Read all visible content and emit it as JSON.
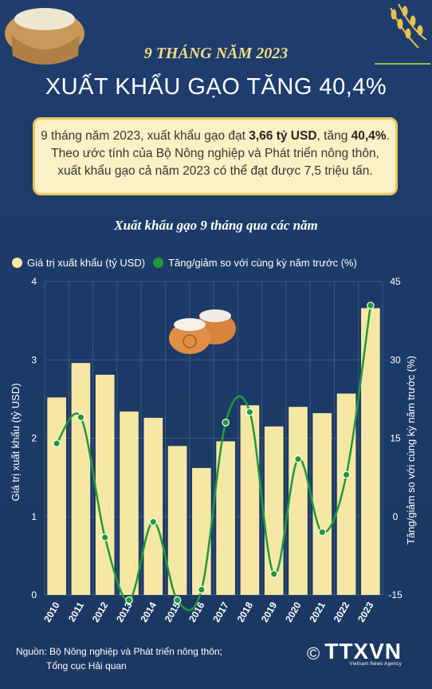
{
  "header": {
    "kicker": "9 THÁNG NĂM 2023",
    "headline": "XUẤT KHẨU GẠO TĂNG 40,4%"
  },
  "summary": {
    "line1_prefix": "9 tháng năm 2023, xuất khẩu gạo đạt ",
    "line1_value": "3,66 tỷ USD",
    "line1_mid": ", tăng ",
    "line1_pct": "40,4%",
    "line1_suffix": ".",
    "line2": "Theo ước tính của Bộ Nông nghiệp và Phát triển nông thôn,",
    "line3": "xuất khẩu gạo cả năm 2023 có thể đạt được 7,5 triệu tấn."
  },
  "chart_data": {
    "type": "bar",
    "title": "Xuất khẩu gạo 9 tháng qua các năm",
    "categories": [
      "2010",
      "2011",
      "2012",
      "2013",
      "2014",
      "2015",
      "2016",
      "2017",
      "2018",
      "2019",
      "2020",
      "2021",
      "2022",
      "2023"
    ],
    "series": [
      {
        "name": "Giá trị xuất khẩu (tỷ USD)",
        "type": "bar",
        "color": "#f6e8a4",
        "axis": "left",
        "values": [
          2.52,
          2.96,
          2.81,
          2.34,
          2.26,
          1.9,
          1.62,
          1.96,
          2.42,
          2.15,
          2.4,
          2.32,
          2.57,
          3.66
        ]
      },
      {
        "name": "Tăng/giảm so với cùng kỳ năm trước (%)",
        "type": "line",
        "color": "#1f9a3a",
        "axis": "right",
        "values": [
          14,
          19,
          -4,
          -16,
          -1,
          -16,
          -14,
          18,
          20,
          -11,
          11,
          -3,
          8,
          40.4
        ]
      }
    ],
    "ylabel_left": "Giá trị xuất khẩu (tỷ USD)",
    "ylabel_right": "Tăng/giảm so với cùng kỳ năm trước (%)",
    "ylim_left": [
      0,
      4
    ],
    "yticks_left": [
      "0",
      "1",
      "2",
      "3",
      "4"
    ],
    "ylim_right": [
      -15,
      45
    ],
    "yticks_right": [
      "-15",
      "0",
      "15",
      "30",
      "45"
    ],
    "grid": true,
    "legend": "top"
  },
  "footer": {
    "source_line1": "Nguồn: Bộ Nông nghiệp và Phát triển nông thôn;",
    "source_line2": "Tổng cục Hải quan",
    "logo_text": "TTXVN",
    "logo_sub": "Vietnam News Agency",
    "copyright": "©"
  }
}
